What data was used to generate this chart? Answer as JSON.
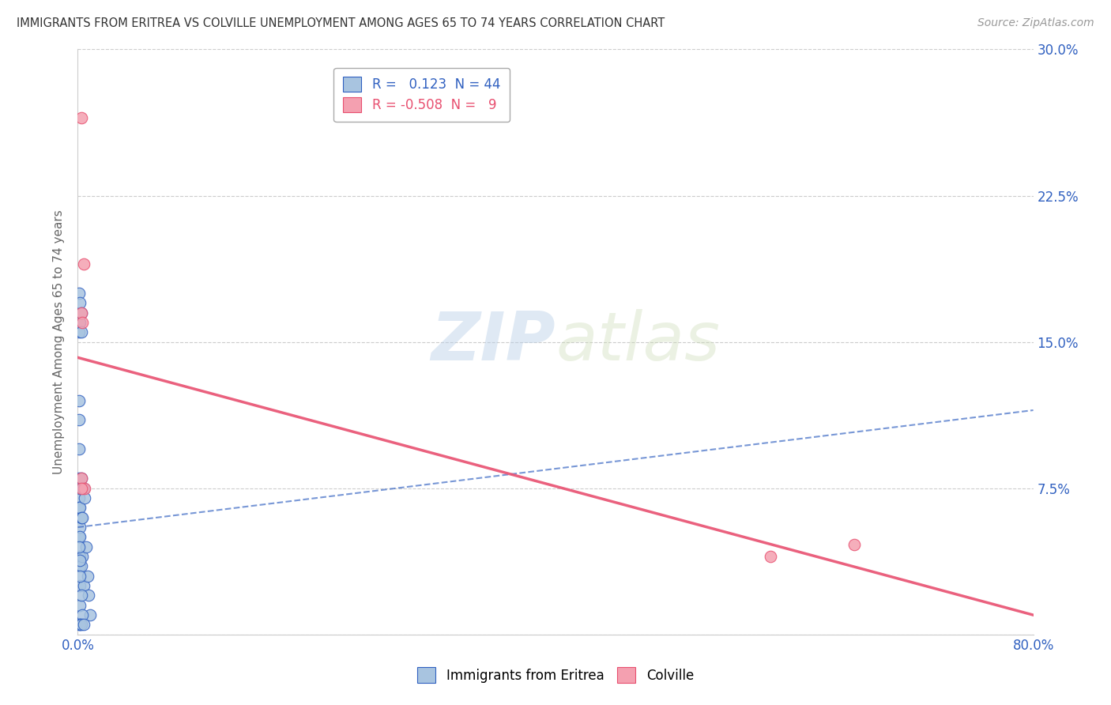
{
  "title": "IMMIGRANTS FROM ERITREA VS COLVILLE UNEMPLOYMENT AMONG AGES 65 TO 74 YEARS CORRELATION CHART",
  "source": "Source: ZipAtlas.com",
  "ylabel": "Unemployment Among Ages 65 to 74 years",
  "xlim": [
    0,
    0.8
  ],
  "ylim": [
    0,
    0.3
  ],
  "xticks": [
    0.0,
    0.1,
    0.2,
    0.3,
    0.4,
    0.5,
    0.6,
    0.7,
    0.8
  ],
  "yticks": [
    0.0,
    0.075,
    0.15,
    0.225,
    0.3
  ],
  "blue_R": 0.123,
  "blue_N": 44,
  "pink_R": -0.508,
  "pink_N": 9,
  "blue_color": "#a8c4e0",
  "pink_color": "#f4a0b0",
  "blue_line_color": "#3060c0",
  "pink_line_color": "#e85070",
  "blue_scatter_x": [
    0.001,
    0.001,
    0.001,
    0.001,
    0.001,
    0.001,
    0.001,
    0.001,
    0.001,
    0.001,
    0.002,
    0.002,
    0.002,
    0.002,
    0.002,
    0.002,
    0.002,
    0.002,
    0.002,
    0.002,
    0.003,
    0.003,
    0.003,
    0.003,
    0.003,
    0.004,
    0.004,
    0.004,
    0.005,
    0.005,
    0.006,
    0.007,
    0.008,
    0.009,
    0.01,
    0.001,
    0.002,
    0.002,
    0.003,
    0.004,
    0.001,
    0.002,
    0.003,
    0.005
  ],
  "blue_scatter_y": [
    0.175,
    0.16,
    0.155,
    0.12,
    0.11,
    0.095,
    0.08,
    0.07,
    0.065,
    0.05,
    0.17,
    0.16,
    0.075,
    0.065,
    0.055,
    0.05,
    0.04,
    0.035,
    0.025,
    0.015,
    0.165,
    0.155,
    0.08,
    0.06,
    0.035,
    0.075,
    0.06,
    0.04,
    0.075,
    0.025,
    0.07,
    0.045,
    0.03,
    0.02,
    0.01,
    0.045,
    0.038,
    0.03,
    0.02,
    0.01,
    0.005,
    0.005,
    0.005,
    0.005
  ],
  "pink_scatter_x": [
    0.003,
    0.005,
    0.003,
    0.004,
    0.003,
    0.006,
    0.003,
    0.58,
    0.65
  ],
  "pink_scatter_y": [
    0.265,
    0.19,
    0.165,
    0.16,
    0.08,
    0.075,
    0.075,
    0.04,
    0.046
  ],
  "blue_line_x0": 0.0,
  "blue_line_x1": 0.8,
  "blue_line_y0": 0.055,
  "blue_line_y1": 0.115,
  "pink_line_x0": 0.0,
  "pink_line_x1": 0.8,
  "pink_line_y0": 0.142,
  "pink_line_y1": 0.01,
  "watermark_zip": "ZIP",
  "watermark_atlas": "atlas",
  "grid_color": "#cccccc",
  "background_color": "#ffffff",
  "legend_blue_label": "R =   0.123  N = 44",
  "legend_pink_label": "R = -0.508  N =   9",
  "bottom_legend_labels": [
    "Immigrants from Eritrea",
    "Colville"
  ]
}
